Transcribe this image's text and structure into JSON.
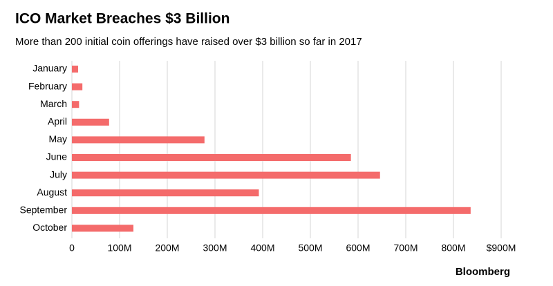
{
  "chart_data": {
    "type": "hbar",
    "title": "ICO Market Breaches $3 Billion",
    "subtitle": "More than 200 initial coin offerings have raised over $3 billion so far in 2017",
    "source": "Bloomberg",
    "categories": [
      "January",
      "February",
      "March",
      "April",
      "May",
      "June",
      "July",
      "August",
      "September",
      "October"
    ],
    "values": [
      13000000,
      22000000,
      15000000,
      78000000,
      278000000,
      585000000,
      646000000,
      392000000,
      836000000,
      129000000
    ],
    "color": "#f46b6b",
    "xlim": [
      0,
      900000000
    ],
    "xticks": [
      0,
      {
        "value": 100000000,
        "label": "100M"
      },
      {
        "value": 200000000,
        "label": "200M"
      },
      {
        "value": 300000000,
        "label": "300M"
      },
      {
        "value": 400000000,
        "label": "400M"
      },
      {
        "value": 500000000,
        "label": "500M"
      },
      {
        "value": 600000000,
        "label": "600M"
      },
      {
        "value": 700000000,
        "label": "700M"
      },
      {
        "value": 800000000,
        "label": "800M"
      },
      {
        "value": 900000000,
        "label": "$900M"
      }
    ],
    "grid": true
  }
}
